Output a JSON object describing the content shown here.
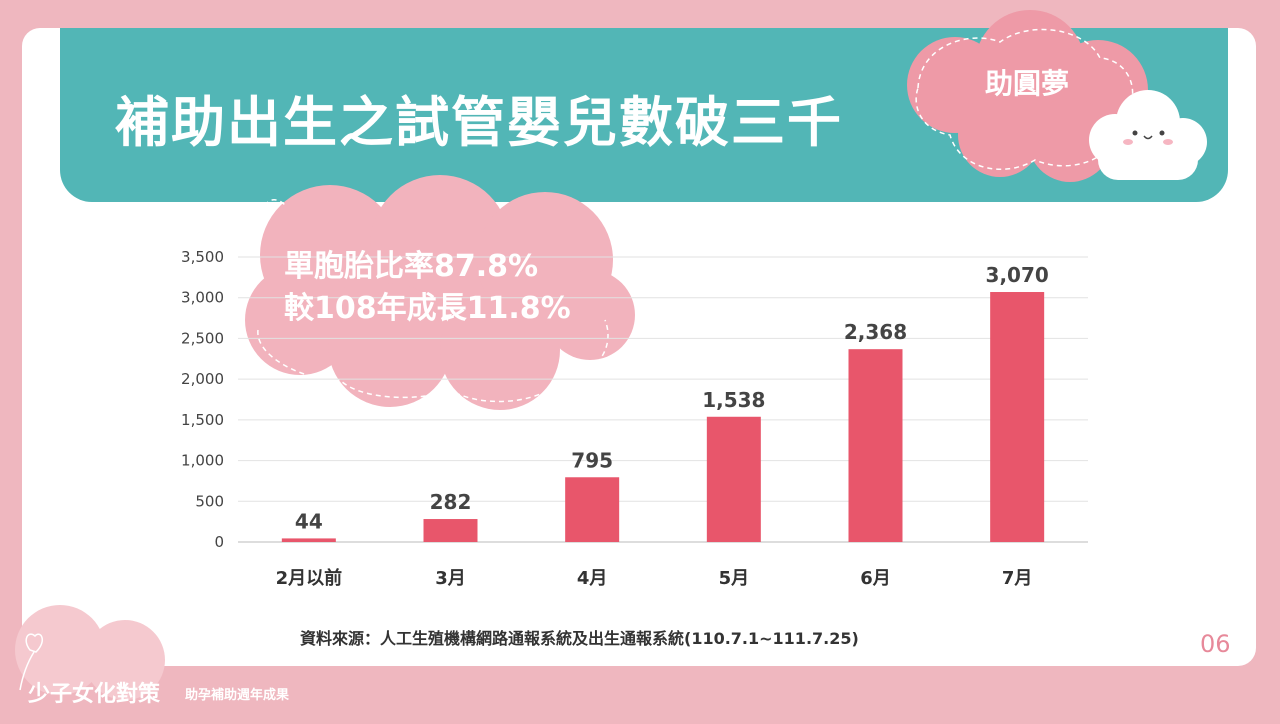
{
  "header": {
    "title": "補助出生之試管嬰兒數破三千",
    "tag": "助圓夢"
  },
  "callout": {
    "line1": "單胞胎比率87.8%",
    "line2": "較108年成長11.8%"
  },
  "chart_data": {
    "type": "bar",
    "categories": [
      "2月以前",
      "3月",
      "4月",
      "5月",
      "6月",
      "7月"
    ],
    "values": [
      44,
      282,
      795,
      1538,
      2368,
      3070
    ],
    "value_labels": [
      "44",
      "282",
      "795",
      "1,538",
      "2,368",
      "3,070"
    ],
    "yticks": [
      "0",
      "500",
      "1,000",
      "1,500",
      "2,000",
      "2,500",
      "3,000",
      "3,500"
    ],
    "ylim": [
      0,
      3500
    ],
    "grid": true,
    "bar_color": "#e8566b"
  },
  "source": "資料來源：人工生殖機構網路通報系統及出生通報系統(110.7.1~111.7.25)",
  "page_number": "06",
  "footer": {
    "title": "少子女化對策",
    "subtitle": "助孕補助週年成果"
  },
  "colors": {
    "background": "#efb7bf",
    "banner": "#52b6b6",
    "accent_pink": "#ee9aa7",
    "bar": "#e8566b"
  }
}
